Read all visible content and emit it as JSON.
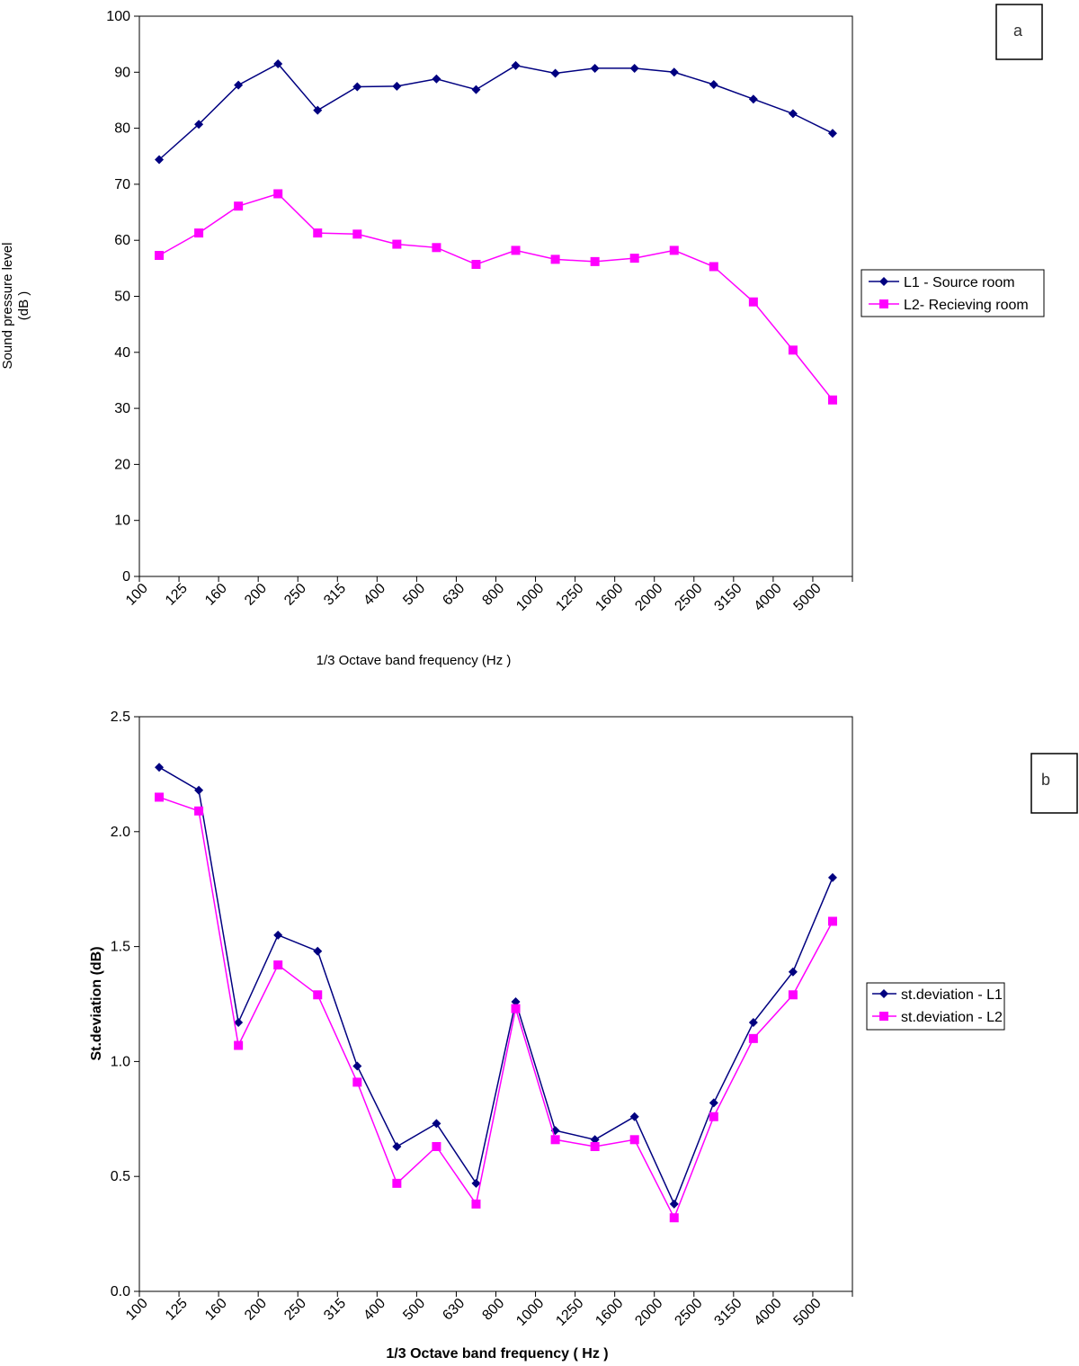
{
  "chart_data": [
    {
      "type": "line",
      "panel_label": "a",
      "xlabel": "1/3 Octave band frequency (Hz )",
      "ylabel_lines": [
        "Sound pressure level",
        "(dB )"
      ],
      "categories": [
        "100",
        "125",
        "160",
        "200",
        "250",
        "315",
        "400",
        "500",
        "630",
        "800",
        "1000",
        "1250",
        "1600",
        "2000",
        "2500",
        "3150",
        "4000",
        "5000"
      ],
      "ylim": [
        0,
        100
      ],
      "yticks": [
        "0",
        "10",
        "20",
        "30",
        "40",
        "50",
        "60",
        "70",
        "80",
        "90",
        "100"
      ],
      "legend_position": "right",
      "grid": false,
      "series": [
        {
          "name": "L1 - Source room",
          "color": "#000080",
          "marker": "diamond",
          "values": [
            74.4,
            80.7,
            87.7,
            91.5,
            83.2,
            87.4,
            87.5,
            88.8,
            86.9,
            91.2,
            89.8,
            90.7,
            90.7,
            90.0,
            87.8,
            85.2,
            82.6,
            79.1
          ]
        },
        {
          "name": "L2- Recieving room",
          "color": "#ff00ff",
          "marker": "square",
          "values": [
            57.3,
            61.3,
            66.1,
            68.3,
            61.3,
            61.1,
            59.3,
            58.7,
            55.7,
            58.2,
            56.6,
            56.2,
            56.8,
            58.2,
            55.3,
            49.0,
            40.4,
            31.5
          ]
        }
      ]
    },
    {
      "type": "line",
      "panel_label": "b",
      "xlabel": "1/3 Octave band frequency ( Hz )",
      "ylabel": "St.deviation (dB)",
      "categories": [
        "100",
        "125",
        "160",
        "200",
        "250",
        "315",
        "400",
        "500",
        "630",
        "800",
        "1000",
        "1250",
        "1600",
        "2000",
        "2500",
        "3150",
        "4000",
        "5000"
      ],
      "ylim": [
        0,
        2.5
      ],
      "yticks": [
        "0.0",
        "0.5",
        "1.0",
        "1.5",
        "2.0",
        "2.5"
      ],
      "legend_position": "right",
      "grid": false,
      "series": [
        {
          "name": "st.deviation - L1",
          "color": "#000080",
          "marker": "diamond",
          "values": [
            2.28,
            2.18,
            1.17,
            1.55,
            1.48,
            0.98,
            0.63,
            0.73,
            0.47,
            1.26,
            0.7,
            0.66,
            0.76,
            0.38,
            0.82,
            1.17,
            1.39,
            1.8
          ]
        },
        {
          "name": "st.deviation - L2",
          "color": "#ff00ff",
          "marker": "square",
          "values": [
            2.15,
            2.09,
            1.07,
            1.42,
            1.29,
            0.91,
            0.47,
            0.63,
            0.38,
            1.23,
            0.66,
            0.63,
            0.66,
            0.32,
            0.76,
            1.1,
            1.29,
            1.61
          ]
        }
      ]
    }
  ]
}
